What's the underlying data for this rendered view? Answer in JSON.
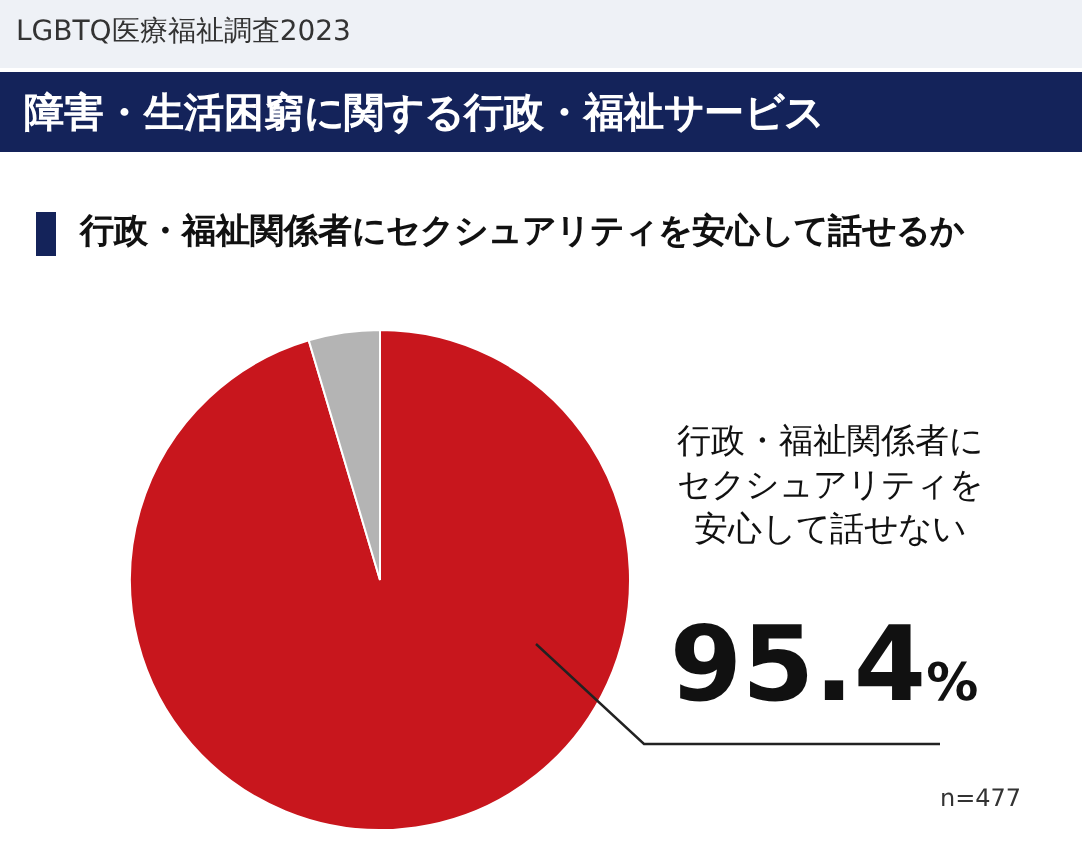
{
  "chart_data": {
    "type": "pie",
    "title": "障害・生活困窮に関する行政・福祉サービス",
    "subtitle": "行政・福祉関係者にセクシュアリティを安心して話せるか",
    "categories": [
      "行政・福祉関係者にセクシュアリティを安心して話せない",
      null
    ],
    "values": [
      95.4,
      4.6
    ],
    "colors": [
      "#c8161d",
      "#b4b4b4"
    ],
    "value_labels": [
      "95.4%",
      null
    ],
    "annotations": [
      "LGBTQ医療福祉調査2023",
      "n=477"
    ]
  }
}
